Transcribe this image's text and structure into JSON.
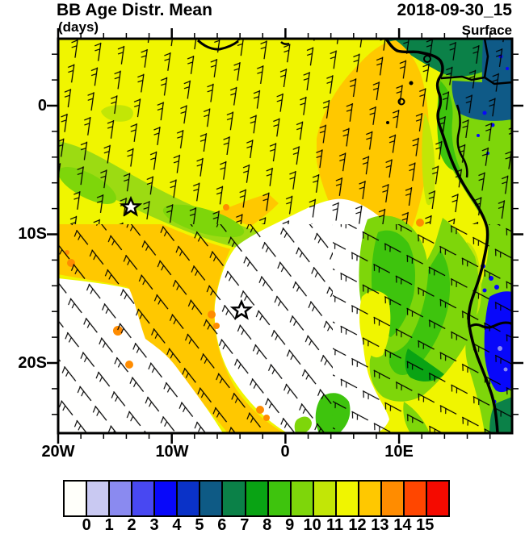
{
  "header": {
    "title": "BB Age Distr. Mean",
    "datetime": "2018-09-30_15",
    "units": "(days)",
    "level": "Surface"
  },
  "axes": {
    "y_labels": [
      "0",
      "10S",
      "20S"
    ],
    "x_labels": [
      "20W",
      "10W",
      "0",
      "10E"
    ]
  },
  "colorbar": {
    "labels": [
      "0",
      "1",
      "2",
      "3",
      "4",
      "5",
      "6",
      "7",
      "8",
      "9",
      "10",
      "11",
      "12",
      "13",
      "14",
      "15"
    ],
    "colors": [
      "#FFFFFA",
      "#C9C9F2",
      "#8A8AF0",
      "#4848F2",
      "#0808FA",
      "#0A32C8",
      "#0E5A85",
      "#0B8148",
      "#09A314",
      "#3EC40D",
      "#7ED60A",
      "#C2E606",
      "#F0F500",
      "#FFC800",
      "#FF8C00",
      "#FF4600",
      "#F50A00"
    ]
  },
  "chart_data": {
    "type": "filled_contour_map",
    "title": "BB Age Distr. Mean",
    "units": "days",
    "valid_time": "2018-09-30_15",
    "level": "Surface",
    "overlay": "surface wind barbs",
    "region": "southeast Atlantic / west-central Africa",
    "lon_range": [
      "20W",
      "20E"
    ],
    "lat_range": [
      "5N",
      "25S"
    ],
    "lon_ticks": [
      "20W",
      "10W",
      "0",
      "10E"
    ],
    "lat_ticks": [
      "0",
      "10S",
      "20S"
    ],
    "scale_values": [
      0,
      1,
      2,
      3,
      4,
      5,
      6,
      7,
      8,
      9,
      10,
      11,
      12,
      13,
      14,
      15
    ],
    "scale_colors": [
      "#FFFFFA",
      "#C9C9F2",
      "#8A8AF0",
      "#4848F2",
      "#0808FA",
      "#0A32C8",
      "#0E5A85",
      "#0B8148",
      "#09A314",
      "#3EC40D",
      "#7ED60A",
      "#C2E606",
      "#F0F500",
      "#FFC800",
      "#FF8C00",
      "#FF4600",
      "#F50A00"
    ],
    "markers": [
      {
        "symbol": "star",
        "approx_lon": "14W",
        "approx_lat": "8S"
      },
      {
        "symbol": "star",
        "approx_lon": "4W",
        "approx_lat": "16S"
      }
    ],
    "field_regions": [
      {
        "region": "open ocean north and northwest",
        "age_days": "11-12 (yellow)"
      },
      {
        "region": "plume off Gulf of Guinea / Gabon coast",
        "age_days": "12-13 (gold)"
      },
      {
        "region": "southwest diagonal band",
        "age_days": "12-13 with spots 13-14"
      },
      {
        "region": "south-central ocean",
        "age_days": "below 0 (white, clean air)"
      },
      {
        "region": "northwest diagonal streak",
        "age_days": "10-11 (light green)"
      },
      {
        "region": "coastal band off Angola",
        "age_days": "9-11 (greens)"
      },
      {
        "region": "land, Congo basin northeast corner",
        "age_days": "5-8 (teal / sea green)"
      },
      {
        "region": "land, eastern edge patches",
        "age_days": "3-5 (blue)"
      }
    ]
  }
}
